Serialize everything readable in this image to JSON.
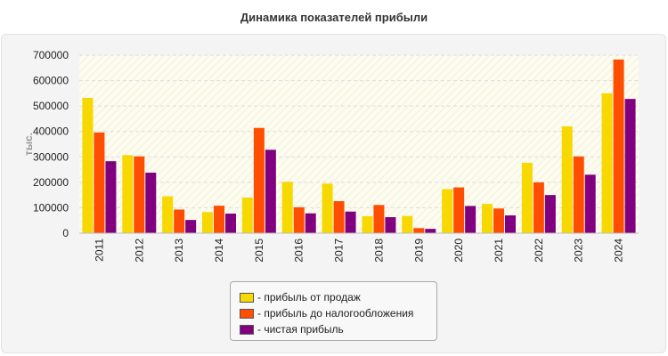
{
  "chart_data": {
    "type": "bar",
    "title": "Динамика показателей прибыли",
    "ylabel": "тыс.",
    "xlabel": "",
    "categories": [
      "2011",
      "2012",
      "2013",
      "2014",
      "2015",
      "2016",
      "2017",
      "2018",
      "2019",
      "2020",
      "2021",
      "2022",
      "2023",
      "2024"
    ],
    "ylim": [
      0,
      700000
    ],
    "yticks": [
      "0",
      "100000",
      "200000",
      "300000",
      "400000",
      "500000",
      "600000",
      "700000"
    ],
    "grid": true,
    "legend_position": "bottom",
    "series": [
      {
        "name": "- прибыль от продаж",
        "color": "#f7d800",
        "values": [
          532000,
          307000,
          145000,
          83000,
          140000,
          202000,
          195000,
          67000,
          68000,
          173000,
          115000,
          277000,
          420000,
          550000
        ]
      },
      {
        "name": "- прибыль до налогообложения",
        "color": "#ff4e00",
        "values": [
          396000,
          302000,
          93000,
          108000,
          414000,
          102000,
          126000,
          111000,
          20000,
          180000,
          97000,
          200000,
          302000,
          683000
        ]
      },
      {
        "name": "- чистая прибыль",
        "color": "#800080",
        "values": [
          283000,
          238000,
          52000,
          77000,
          328000,
          78000,
          85000,
          63000,
          17000,
          107000,
          70000,
          150000,
          230000,
          528000
        ]
      }
    ]
  }
}
